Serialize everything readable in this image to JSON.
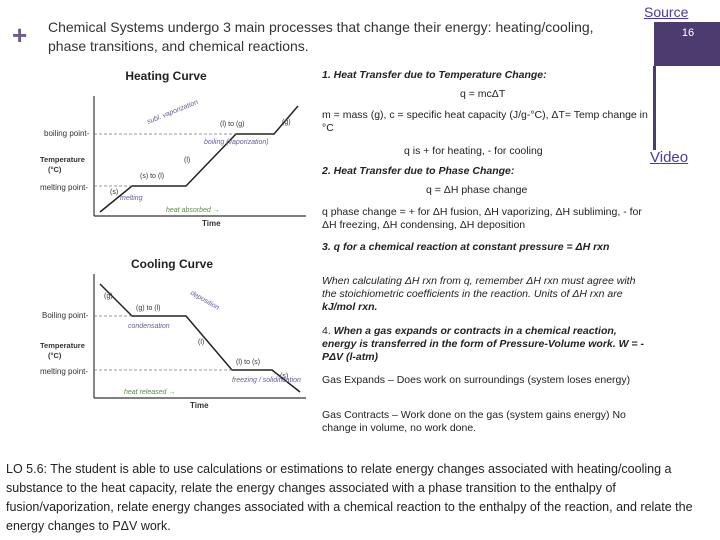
{
  "header": {
    "plus": "+",
    "title": "Chemical Systems undergo 3 main processes that change their energy: heating/cooling, phase transitions, and chemical reactions.",
    "source_link": "Source",
    "slide_number": "16",
    "video_link": "Video"
  },
  "heating_curve": {
    "title": "Heating Curve",
    "ylabel": "Temperature\n(°C)",
    "xlabel": "Time",
    "boiling_label": "boiling point-",
    "melting_label": "melting point-",
    "phase_labels": [
      "(s)",
      "(s) to (l)",
      "(l)",
      "(l) to (g)",
      "(g)"
    ],
    "annotations": [
      "subl. vaporization",
      "boiling (vaporization)",
      "melting",
      "heat absorbed →"
    ]
  },
  "cooling_curve": {
    "title": "Cooling Curve",
    "ylabel": "Temperature\n(°C)",
    "xlabel": "Time",
    "boiling_label": "Boiling point-",
    "melting_label": "melting point-",
    "phase_labels": [
      "(g)",
      "(g) to (l)",
      "(l)",
      "(l) to (s)",
      "(s)"
    ],
    "annotations": [
      "condensation",
      "freezing / solidification",
      "deposition",
      "heat released →"
    ]
  },
  "content": {
    "item1_title": "1.  Heat Transfer due to Temperature Change:",
    "item1_eq": "q = mcΔT",
    "item1_def": "m = mass (g), c = specific heat capacity (J/g-°C), ΔT= Temp change in °C",
    "item1_sign": "q is + for heating, - for cooling",
    "item2_title": "2.  Heat Transfer due to Phase Change:",
    "item2_eq": "q = ΔH phase change",
    "item2_def": "q phase change = + for ΔH fusion, ΔH vaporizing, ΔH subliming, - for ΔH freezing, ΔH condensing, ΔH deposition",
    "item3_title": "3.  q for a chemical reaction at constant pressure = ΔH rxn",
    "item3_text_a": "When calculating ΔH rxn from q, remember ΔH rxn must agree with the stoichiometric coefficients in the reaction. Units of ΔH rxn are ",
    "item3_text_b": "kJ/mol rxn.",
    "item4_num": "4.",
    "item4_text": "When a gas expands or contracts in a chemical reaction, energy is transferred in the form of Pressure-Volume work.        W = -PΔV (l-atm)",
    "expands": "Gas Expands – Does work on surroundings (system loses energy)",
    "contracts": "Gas Contracts – Work done on the gas (system gains energy)       No change in volume, no work done."
  },
  "lo": "LO 5.6: The student is able to use calculations or estimations to relate energy changes associated with heating/cooling a substance to the heat capacity, relate the energy changes associated with a phase transition to the enthalpy of fusion/vaporization, relate energy changes associated with a chemical reaction to the enthalpy of the reaction, and relate the energy changes to PΔV work."
}
